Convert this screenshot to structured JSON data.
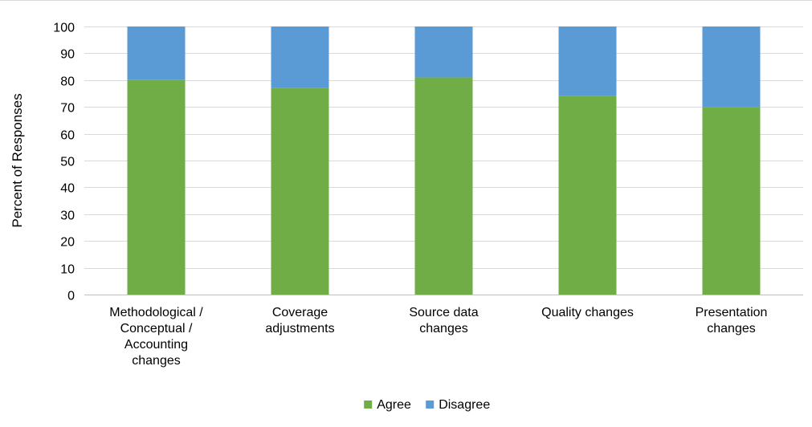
{
  "chart_data": {
    "type": "bar",
    "stacked": true,
    "categories": [
      "Methodological / Conceptual / Accounting changes",
      "Coverage adjustments",
      "Source data changes",
      "Quality changes",
      "Presentation changes"
    ],
    "category_lines": [
      [
        "Methodological /",
        "Conceptual /",
        "Accounting",
        "changes"
      ],
      [
        "Coverage",
        "adjustments"
      ],
      [
        "Source data",
        "changes"
      ],
      [
        "Quality changes"
      ],
      [
        "Presentation",
        "changes"
      ]
    ],
    "series": [
      {
        "name": "Agree",
        "color": "#70ad47",
        "values": [
          80,
          77,
          81,
          74,
          70
        ]
      },
      {
        "name": "Disagree",
        "color": "#5b9bd5",
        "values": [
          20,
          23,
          19,
          26,
          30
        ]
      }
    ],
    "ylabel": "Percent of Responses",
    "xlabel": "",
    "title": "",
    "ylim": [
      0,
      100
    ],
    "yticks": [
      0,
      10,
      20,
      30,
      40,
      50,
      60,
      70,
      80,
      90,
      100
    ],
    "grid": true,
    "legend": "bottom-center",
    "colors": {
      "grid": "#d9d9d9",
      "axis": "#bfbfbf"
    }
  }
}
